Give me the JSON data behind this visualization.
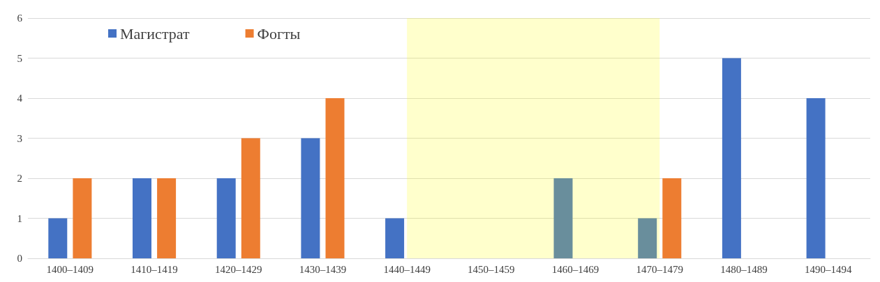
{
  "chart_data": {
    "type": "bar",
    "categories": [
      "1400–1409",
      "1410–1419",
      "1420–1429",
      "1430–1439",
      "1440–1449",
      "1450–1459",
      "1460–1469",
      "1470–1479",
      "1480–1489",
      "1490–1494"
    ],
    "series": [
      {
        "name": "Магистрат",
        "color": "#4472c4",
        "values": [
          1,
          2,
          2,
          3,
          1,
          0,
          2,
          1,
          5,
          4
        ]
      },
      {
        "name": "Фогты",
        "color": "#ed7d31",
        "values": [
          2,
          2,
          3,
          4,
          0,
          0,
          0,
          2,
          0,
          0
        ]
      }
    ],
    "ylim": [
      0,
      6
    ],
    "yticks": [
      0,
      1,
      2,
      3,
      4,
      5,
      6
    ],
    "grid": "y",
    "legend": "top left",
    "bands": [
      {
        "axis": "x",
        "from": "1440–1449",
        "to": "1470–1479",
        "color": "#ffff00"
      }
    ]
  }
}
